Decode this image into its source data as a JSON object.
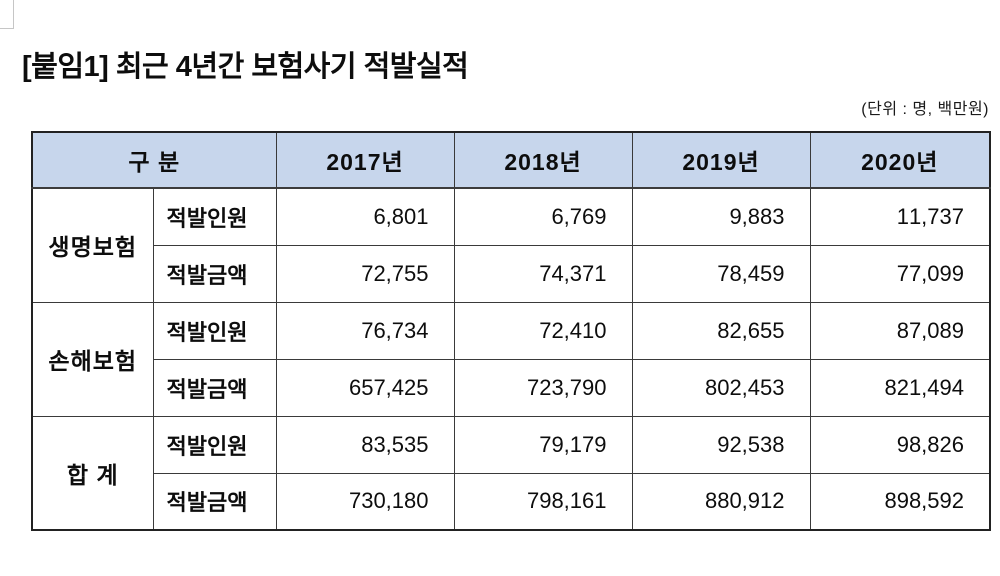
{
  "page": {
    "title": "[붙임1] 최근 4년간 보험사기 적발실적",
    "unit_note": "(단위 : 명, 백만원)"
  },
  "colors": {
    "header_bg": "#c7d6ec",
    "border_dark": "#222222",
    "border_inner": "#3a3a3a"
  },
  "table": {
    "corner_header": "구 분",
    "year_headers": [
      "2017년",
      "2018년",
      "2019년",
      "2020년"
    ],
    "metric_labels": [
      "적발인원",
      "적발금액"
    ],
    "groups": [
      {
        "name": "생명보험",
        "person": [
          "6,801",
          "6,769",
          "9,883",
          "11,737"
        ],
        "amount": [
          "72,755",
          "74,371",
          "78,459",
          "77,099"
        ]
      },
      {
        "name": "손해보험",
        "person": [
          "76,734",
          "72,410",
          "82,655",
          "87,089"
        ],
        "amount": [
          "657,425",
          "723,790",
          "802,453",
          "821,494"
        ]
      },
      {
        "name": "합 계",
        "person": [
          "83,535",
          "79,179",
          "92,538",
          "98,826"
        ],
        "amount": [
          "730,180",
          "798,161",
          "880,912",
          "898,592"
        ]
      }
    ]
  }
}
